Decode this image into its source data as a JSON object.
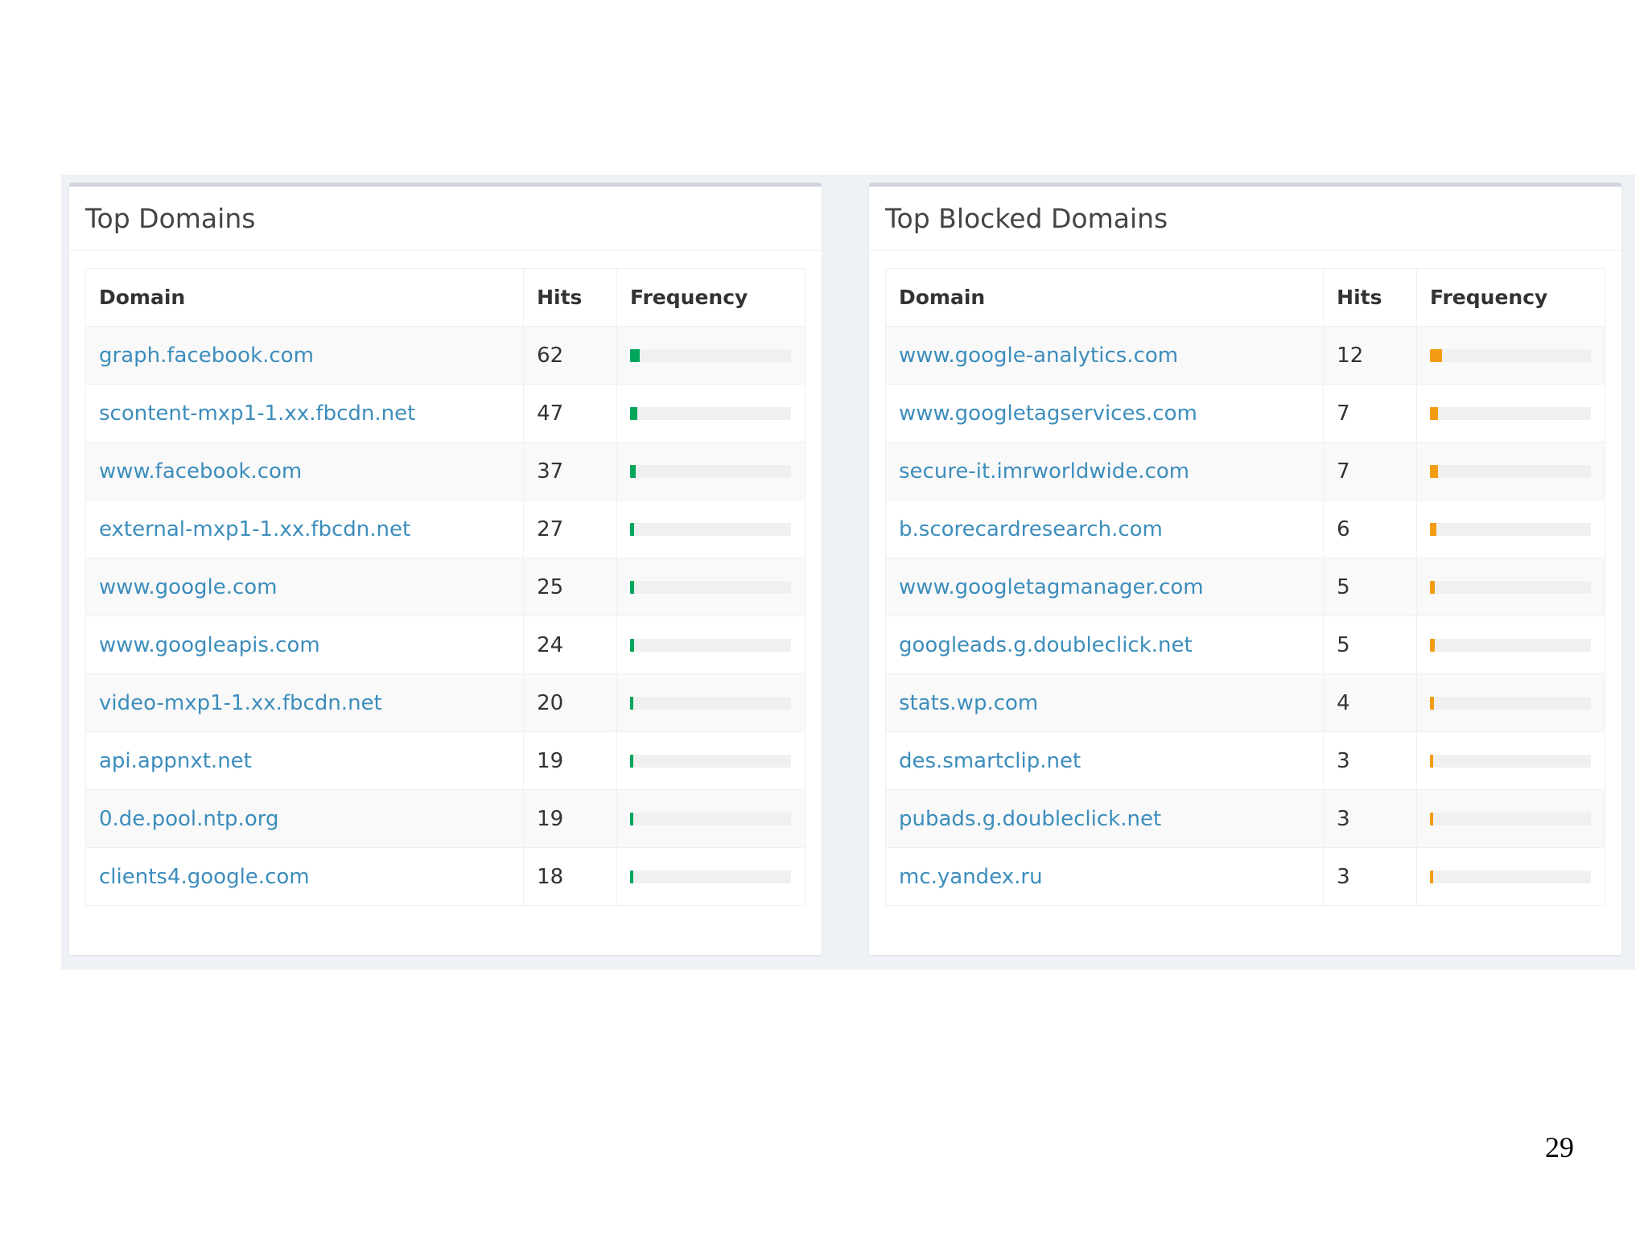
{
  "panels": {
    "top_domains": {
      "title": "Top Domains",
      "columns": [
        "Domain",
        "Hits",
        "Frequency"
      ],
      "bar_color": "#00a65a",
      "rows": [
        {
          "domain": "graph.facebook.com",
          "hits": "62",
          "frequency": 0.062
        },
        {
          "domain": "scontent-mxp1-1.xx.fbcdn.net",
          "hits": "47",
          "frequency": 0.047
        },
        {
          "domain": "www.facebook.com",
          "hits": "37",
          "frequency": 0.037
        },
        {
          "domain": "external-mxp1-1.xx.fbcdn.net",
          "hits": "27",
          "frequency": 0.027
        },
        {
          "domain": "www.google.com",
          "hits": "25",
          "frequency": 0.025
        },
        {
          "domain": "www.googleapis.com",
          "hits": "24",
          "frequency": 0.024
        },
        {
          "domain": "video-mxp1-1.xx.fbcdn.net",
          "hits": "20",
          "frequency": 0.02
        },
        {
          "domain": "api.appnxt.net",
          "hits": "19",
          "frequency": 0.019
        },
        {
          "domain": "0.de.pool.ntp.org",
          "hits": "19",
          "frequency": 0.019
        },
        {
          "domain": "clients4.google.com",
          "hits": "18",
          "frequency": 0.018
        }
      ]
    },
    "top_blocked_domains": {
      "title": "Top Blocked Domains",
      "columns": [
        "Domain",
        "Hits",
        "Frequency"
      ],
      "bar_color": "#f39c12",
      "rows": [
        {
          "domain": "www.google-analytics.com",
          "hits": "12",
          "frequency": 0.075
        },
        {
          "domain": "www.googletagservices.com",
          "hits": "7",
          "frequency": 0.048
        },
        {
          "domain": "secure-it.imrworldwide.com",
          "hits": "7",
          "frequency": 0.048
        },
        {
          "domain": "b.scorecardresearch.com",
          "hits": "6",
          "frequency": 0.04
        },
        {
          "domain": "www.googletagmanager.com",
          "hits": "5",
          "frequency": 0.032
        },
        {
          "domain": "googleads.g.doubleclick.net",
          "hits": "5",
          "frequency": 0.032
        },
        {
          "domain": "stats.wp.com",
          "hits": "4",
          "frequency": 0.025
        },
        {
          "domain": "des.smartclip.net",
          "hits": "3",
          "frequency": 0.02
        },
        {
          "domain": "pubads.g.doubleclick.net",
          "hits": "3",
          "frequency": 0.02
        },
        {
          "domain": "mc.yandex.ru",
          "hits": "3",
          "frequency": 0.02
        }
      ]
    }
  },
  "page_number": "29"
}
